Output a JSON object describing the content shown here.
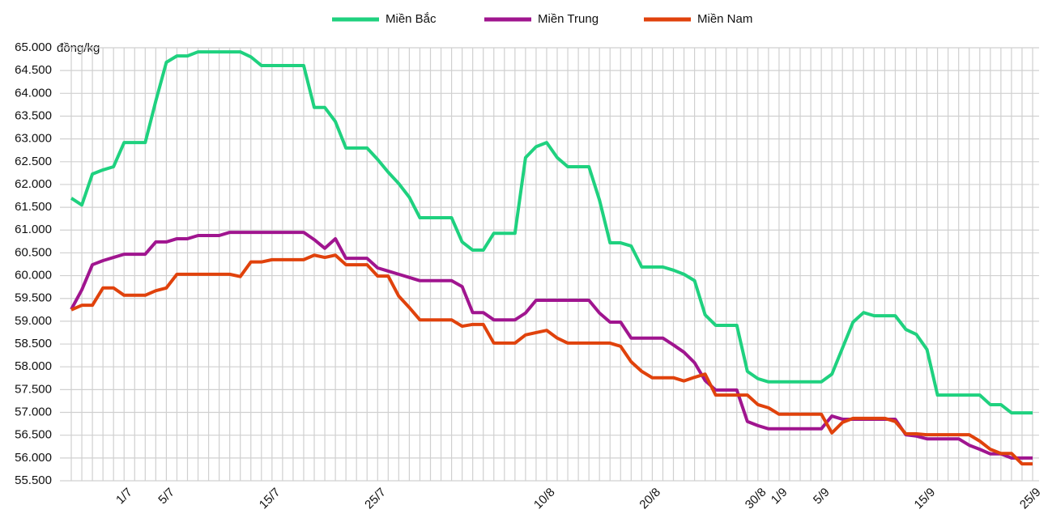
{
  "chart_data": {
    "type": "line",
    "y_unit": "đồng/kg",
    "categories": [
      null,
      null,
      null,
      null,
      null,
      "1/7",
      null,
      null,
      null,
      "5/7",
      null,
      null,
      null,
      null,
      null,
      null,
      null,
      null,
      null,
      "15/7",
      null,
      null,
      null,
      null,
      null,
      null,
      null,
      null,
      null,
      "25/7",
      null,
      null,
      null,
      null,
      null,
      null,
      null,
      null,
      null,
      null,
      null,
      null,
      null,
      null,
      null,
      "10/8",
      null,
      null,
      null,
      null,
      null,
      null,
      null,
      null,
      null,
      "20/8",
      null,
      null,
      null,
      null,
      null,
      null,
      null,
      null,
      null,
      "30/8",
      null,
      "1/9",
      null,
      null,
      null,
      "5/9",
      null,
      null,
      null,
      null,
      null,
      null,
      null,
      null,
      null,
      "15/9",
      null,
      null,
      null,
      null,
      null,
      null,
      null,
      null,
      null,
      "25/9"
    ],
    "series": [
      {
        "name": "Miền Bắc",
        "color": "#1fd17f",
        "values": [
          61700,
          61550,
          62230,
          62320,
          62390,
          62920,
          62920,
          62920,
          63830,
          64680,
          64820,
          64820,
          64910,
          64910,
          64910,
          64910,
          64910,
          64800,
          64610,
          64610,
          64610,
          64610,
          64610,
          63690,
          63690,
          63380,
          62800,
          62800,
          62800,
          62550,
          62270,
          62020,
          61720,
          61270,
          61270,
          61270,
          61270,
          60740,
          60560,
          60560,
          60930,
          60930,
          60930,
          62590,
          62830,
          62920,
          62590,
          62390,
          62390,
          62390,
          61660,
          60720,
          60720,
          60650,
          60190,
          60190,
          60190,
          60120,
          60030,
          59890,
          59140,
          58910,
          58910,
          58910,
          57900,
          57740,
          57670,
          57670,
          57670,
          57670,
          57670,
          57670,
          57840,
          58410,
          58980,
          59190,
          59120,
          59120,
          59120,
          58820,
          58710,
          58380,
          57380,
          57380,
          57380,
          57380,
          57380,
          57170,
          57170,
          56990,
          56990,
          56990
        ]
      },
      {
        "name": "Miền Trung",
        "color": "#a0158f",
        "values": [
          59260,
          59690,
          60240,
          60330,
          60400,
          60470,
          60470,
          60470,
          60740,
          60740,
          60810,
          60810,
          60880,
          60880,
          60880,
          60950,
          60950,
          60950,
          60950,
          60950,
          60950,
          60950,
          60950,
          60790,
          60600,
          60810,
          60380,
          60380,
          60380,
          60170,
          60100,
          60030,
          59960,
          59890,
          59890,
          59890,
          59890,
          59760,
          59190,
          59190,
          59030,
          59030,
          59030,
          59180,
          59460,
          59460,
          59460,
          59460,
          59460,
          59460,
          59180,
          58980,
          58980,
          58630,
          58630,
          58630,
          58630,
          58480,
          58320,
          58090,
          57700,
          57490,
          57490,
          57490,
          56800,
          56710,
          56640,
          56640,
          56640,
          56640,
          56640,
          56640,
          56920,
          56850,
          56850,
          56850,
          56850,
          56850,
          56850,
          56510,
          56480,
          56420,
          56420,
          56420,
          56420,
          56280,
          56190,
          56090,
          56090,
          56000,
          56000,
          56000
        ]
      },
      {
        "name": "Miền Nam",
        "color": "#e0420c",
        "values": [
          59250,
          59350,
          59350,
          59730,
          59730,
          59570,
          59570,
          59570,
          59670,
          59730,
          60030,
          60030,
          60030,
          60030,
          60030,
          60030,
          59980,
          60300,
          60300,
          60350,
          60350,
          60350,
          60350,
          60450,
          60400,
          60450,
          60240,
          60240,
          60240,
          59990,
          59990,
          59550,
          59300,
          59030,
          59030,
          59030,
          59030,
          58890,
          58930,
          58930,
          58520,
          58520,
          58520,
          58700,
          58750,
          58800,
          58630,
          58520,
          58520,
          58520,
          58520,
          58520,
          58450,
          58110,
          57900,
          57760,
          57760,
          57760,
          57690,
          57770,
          57840,
          57380,
          57380,
          57380,
          57380,
          57170,
          57100,
          56960,
          56960,
          56960,
          56960,
          56960,
          56550,
          56780,
          56870,
          56870,
          56870,
          56870,
          56800,
          56530,
          56530,
          56510,
          56510,
          56510,
          56510,
          56510,
          56370,
          56190,
          56100,
          56100,
          55870,
          55870
        ]
      }
    ],
    "ylim": [
      55500,
      65000
    ],
    "yticks": [
      {
        "value": 55500,
        "label": "55.500"
      },
      {
        "value": 56000,
        "label": "56.000"
      },
      {
        "value": 56500,
        "label": "56.500"
      },
      {
        "value": 57000,
        "label": "57.000"
      },
      {
        "value": 57500,
        "label": "57.500"
      },
      {
        "value": 58000,
        "label": "58.000"
      },
      {
        "value": 58500,
        "label": "58.500"
      },
      {
        "value": 59000,
        "label": "59.000"
      },
      {
        "value": 59500,
        "label": "59.500"
      },
      {
        "value": 60000,
        "label": "60.000"
      },
      {
        "value": 60500,
        "label": "60.500"
      },
      {
        "value": 61000,
        "label": "61.000"
      },
      {
        "value": 61500,
        "label": "61.500"
      },
      {
        "value": 62000,
        "label": "62.000"
      },
      {
        "value": 62500,
        "label": "62.500"
      },
      {
        "value": 63000,
        "label": "63.000"
      },
      {
        "value": 63500,
        "label": "63.500"
      },
      {
        "value": 64000,
        "label": "64.000"
      },
      {
        "value": 64500,
        "label": "64.500"
      },
      {
        "value": 65000,
        "label": "65.000"
      }
    ],
    "grid": true,
    "legend": "top"
  }
}
